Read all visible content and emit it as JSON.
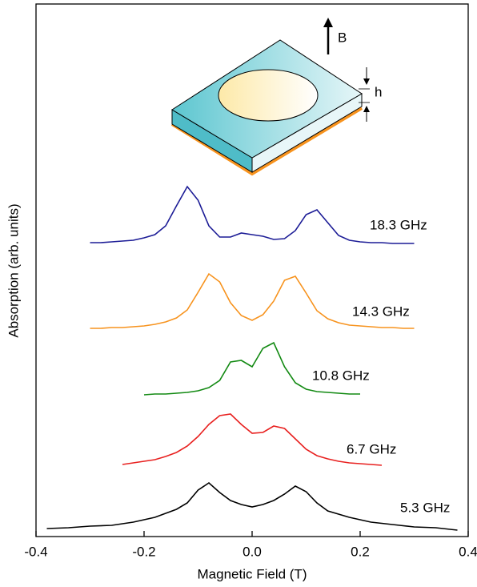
{
  "chart_data": {
    "type": "line",
    "xlabel": "Magnetic Field (T)",
    "ylabel": "Absorption (arb. units)",
    "xlim": [
      -0.4,
      0.4
    ],
    "xticks": [
      -0.4,
      -0.2,
      {
        "value": 0,
        "label": "0.0"
      },
      0.2,
      0.4
    ],
    "ylim": [
      0,
      665
    ],
    "annotations": [
      "B",
      "h"
    ],
    "series": [
      {
        "name": "18.3 GHz",
        "color": "#1c1c96",
        "x": [
          -0.3,
          -0.28,
          -0.26,
          -0.24,
          -0.22,
          -0.2,
          -0.18,
          -0.16,
          -0.14,
          -0.12,
          -0.1,
          -0.08,
          -0.06,
          -0.04,
          -0.02,
          0,
          0.02,
          0.04,
          0.06,
          0.08,
          0.1,
          0.12,
          0.14,
          0.16,
          0.18,
          0.2,
          0.22,
          0.24,
          0.26,
          0.28,
          0.3
        ],
        "values": [
          367,
          367,
          368,
          369,
          370,
          373,
          377,
          388,
          413,
          437,
          420,
          388,
          374,
          374,
          379,
          377,
          375,
          371,
          372,
          382,
          402,
          408,
          392,
          376,
          370,
          368,
          367,
          367,
          366,
          366,
          366
        ]
      },
      {
        "name": "14.3 GHz",
        "color": "#f7931e",
        "x": [
          -0.3,
          -0.28,
          -0.26,
          -0.24,
          -0.22,
          -0.2,
          -0.18,
          -0.16,
          -0.14,
          -0.12,
          -0.1,
          -0.08,
          -0.06,
          -0.04,
          -0.02,
          0,
          0.02,
          0.04,
          0.06,
          0.08,
          0.1,
          0.12,
          0.14,
          0.16,
          0.18,
          0.2,
          0.22,
          0.24,
          0.26,
          0.28,
          0.3
        ],
        "values": [
          260,
          260,
          261,
          261,
          262,
          263,
          265,
          268,
          273,
          283,
          305,
          328,
          318,
          292,
          276,
          270,
          277,
          294,
          320,
          325,
          304,
          282,
          272,
          267,
          264,
          263,
          262,
          261,
          261,
          260,
          260
        ]
      },
      {
        "name": "10.8 GHz",
        "color": "#138a13",
        "x": [
          -0.2,
          -0.18,
          -0.16,
          -0.14,
          -0.12,
          -0.1,
          -0.08,
          -0.06,
          -0.04,
          -0.02,
          0,
          0.02,
          0.04,
          0.06,
          0.08,
          0.1,
          0.12,
          0.14,
          0.16,
          0.18,
          0.2
        ],
        "values": [
          177,
          178,
          178,
          179,
          180,
          182,
          186,
          195,
          218,
          220,
          212,
          235,
          242,
          212,
          192,
          184,
          181,
          180,
          179,
          178,
          178
        ]
      },
      {
        "name": "6.7 GHz",
        "color": "#e8201f",
        "x": [
          -0.24,
          -0.22,
          -0.2,
          -0.18,
          -0.16,
          -0.14,
          -0.12,
          -0.1,
          -0.08,
          -0.06,
          -0.04,
          -0.02,
          0,
          0.02,
          0.04,
          0.06,
          0.08,
          0.1,
          0.12,
          0.14,
          0.16,
          0.18,
          0.2,
          0.22,
          0.24
        ],
        "values": [
          90,
          92,
          94,
          96,
          100,
          105,
          113,
          125,
          140,
          151,
          153,
          140,
          129,
          130,
          138,
          135,
          122,
          109,
          101,
          97,
          94,
          92,
          91,
          90,
          89
        ]
      },
      {
        "name": "5.3 GHz",
        "color": "#000000",
        "x": [
          -0.38,
          -0.34,
          -0.3,
          -0.26,
          -0.22,
          -0.18,
          -0.14,
          -0.12,
          -0.1,
          -0.08,
          -0.06,
          -0.04,
          -0.02,
          0,
          0.02,
          0.04,
          0.06,
          0.08,
          0.1,
          0.12,
          0.14,
          0.18,
          0.22,
          0.26,
          0.3,
          0.34,
          0.38
        ],
        "values": [
          10,
          11,
          13,
          14,
          18,
          24,
          34,
          42,
          58,
          67,
          55,
          45,
          40,
          37,
          40,
          45,
          53,
          63,
          56,
          42,
          32,
          24,
          18,
          15,
          12,
          11,
          8
        ]
      }
    ]
  }
}
